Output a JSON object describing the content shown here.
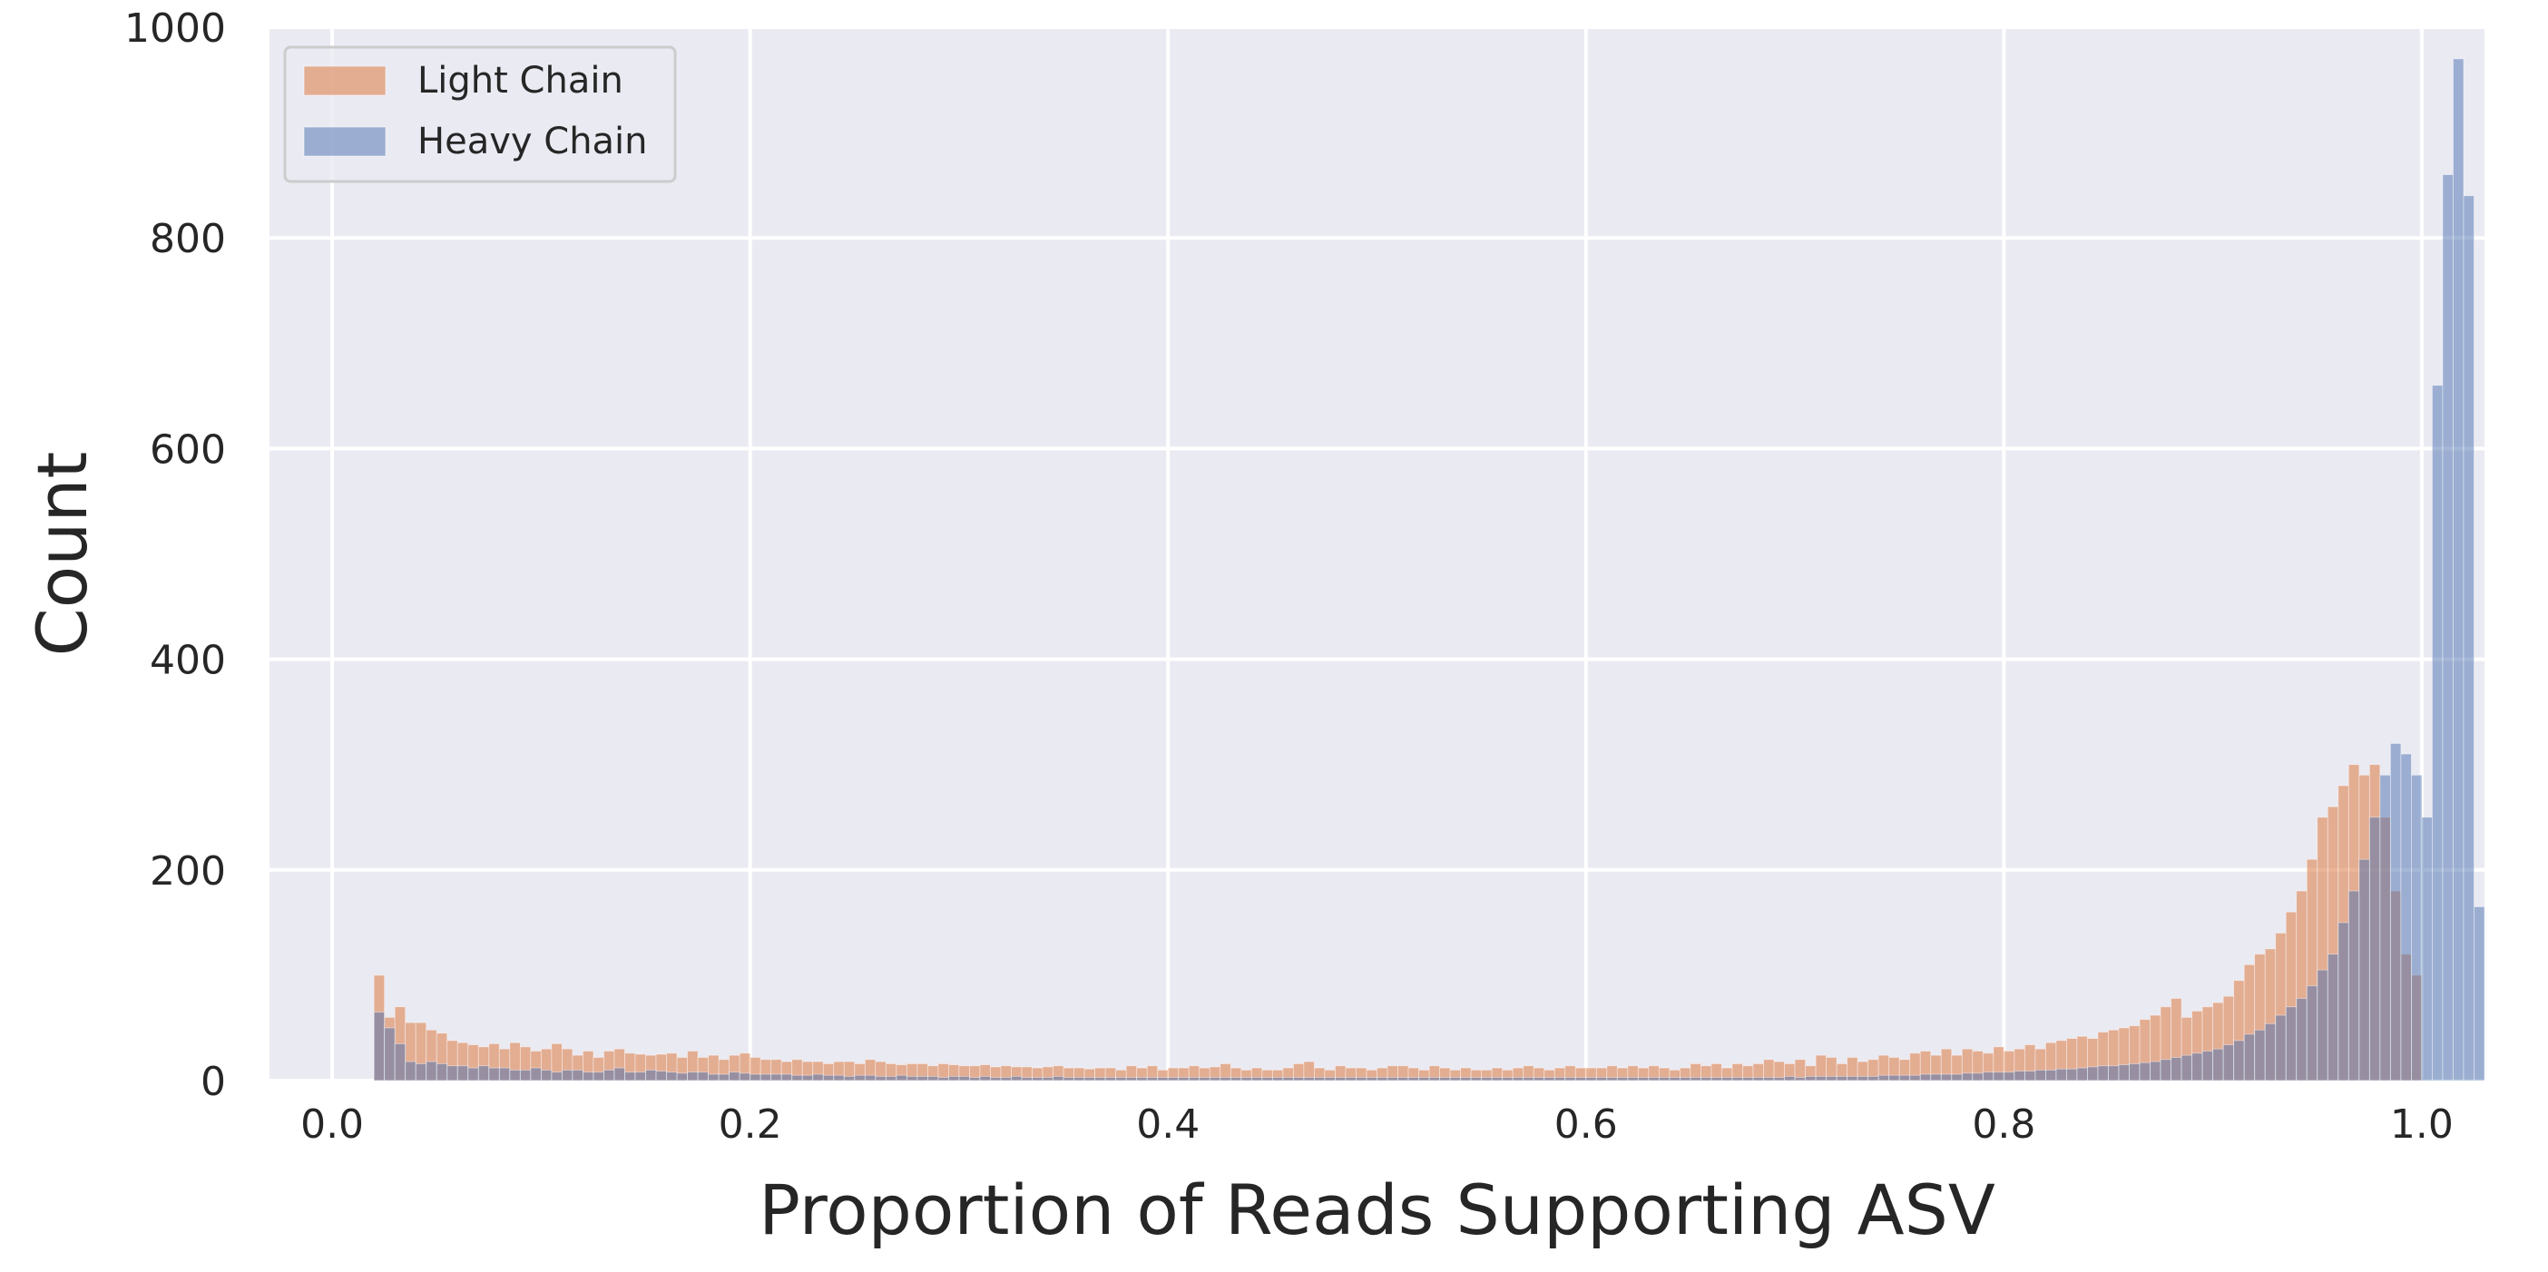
{
  "chart_data": {
    "type": "histogram",
    "title": "",
    "xlabel": "Proportion of Reads Supporting ASV",
    "ylabel": "Count",
    "xlim": [
      -0.03,
      1.03
    ],
    "ylim": [
      0,
      1000
    ],
    "xticks": [
      0.0,
      0.2,
      0.4,
      0.6,
      0.8,
      1.0
    ],
    "xtick_labels": [
      "0.0",
      "0.2",
      "0.4",
      "0.6",
      "0.8",
      "1.0"
    ],
    "yticks": [
      0,
      200,
      400,
      600,
      800,
      1000
    ],
    "ytick_labels": [
      "0",
      "200",
      "400",
      "600",
      "800",
      "1000"
    ],
    "grid": true,
    "legend_position": "top-left",
    "bins": {
      "start": 0.02,
      "end": 1.0,
      "count": 196
    },
    "series": [
      {
        "name": "Light Chain",
        "color": "#dd8452",
        "values": [
          100,
          60,
          70,
          55,
          55,
          48,
          45,
          38,
          36,
          34,
          32,
          35,
          30,
          36,
          32,
          28,
          30,
          35,
          30,
          24,
          28,
          22,
          28,
          30,
          26,
          25,
          24,
          25,
          26,
          22,
          28,
          22,
          24,
          20,
          24,
          26,
          22,
          20,
          20,
          18,
          20,
          18,
          18,
          16,
          18,
          18,
          16,
          20,
          18,
          16,
          15,
          16,
          16,
          14,
          16,
          15,
          14,
          14,
          15,
          13,
          14,
          13,
          13,
          12,
          13,
          14,
          12,
          12,
          11,
          12,
          12,
          10,
          14,
          12,
          14,
          10,
          12,
          12,
          14,
          12,
          13,
          16,
          12,
          10,
          12,
          10,
          10,
          12,
          16,
          18,
          12,
          10,
          14,
          12,
          12,
          10,
          12,
          14,
          14,
          12,
          10,
          14,
          12,
          10,
          12,
          10,
          10,
          12,
          10,
          12,
          14,
          12,
          10,
          12,
          14,
          12,
          12,
          12,
          14,
          12,
          14,
          12,
          14,
          12,
          10,
          12,
          16,
          14,
          16,
          12,
          16,
          14,
          16,
          20,
          18,
          16,
          20,
          14,
          24,
          22,
          16,
          22,
          18,
          20,
          24,
          22,
          20,
          26,
          28,
          24,
          30,
          24,
          30,
          28,
          26,
          32,
          28,
          30,
          34,
          30,
          36,
          38,
          40,
          42,
          40,
          46,
          48,
          50,
          52,
          58,
          62,
          70,
          78,
          60,
          66,
          70,
          74,
          80,
          95,
          110,
          120,
          125,
          140,
          160,
          180,
          210,
          250,
          260,
          280,
          300,
          290,
          300,
          250,
          180,
          120,
          100
        ],
        "opacity": 0.6
      },
      {
        "name": "Heavy Chain",
        "color": "#4c72b0",
        "values": [
          65,
          50,
          35,
          18,
          16,
          18,
          16,
          14,
          14,
          12,
          14,
          12,
          12,
          10,
          10,
          12,
          10,
          8,
          10,
          10,
          8,
          8,
          10,
          12,
          8,
          8,
          10,
          9,
          8,
          7,
          8,
          8,
          6,
          6,
          8,
          7,
          6,
          6,
          6,
          6,
          5,
          5,
          6,
          5,
          5,
          4,
          5,
          5,
          4,
          4,
          5,
          4,
          4,
          4,
          3,
          4,
          4,
          3,
          4,
          3,
          3,
          4,
          3,
          3,
          3,
          4,
          3,
          3,
          3,
          3,
          3,
          3,
          3,
          3,
          3,
          3,
          3,
          3,
          3,
          3,
          3,
          3,
          3,
          3,
          3,
          3,
          3,
          3,
          3,
          3,
          3,
          3,
          3,
          3,
          3,
          3,
          3,
          3,
          3,
          3,
          3,
          3,
          3,
          3,
          3,
          3,
          3,
          3,
          3,
          3,
          3,
          3,
          3,
          3,
          3,
          3,
          3,
          3,
          3,
          3,
          3,
          3,
          3,
          3,
          3,
          3,
          3,
          3,
          3,
          3,
          3,
          3,
          3,
          3,
          3,
          4,
          3,
          4,
          4,
          4,
          4,
          4,
          4,
          4,
          5,
          5,
          5,
          5,
          6,
          6,
          6,
          6,
          7,
          7,
          8,
          8,
          8,
          9,
          9,
          10,
          10,
          11,
          11,
          12,
          13,
          14,
          14,
          15,
          16,
          17,
          18,
          20,
          22,
          24,
          26,
          28,
          30,
          34,
          38,
          44,
          48,
          54,
          62,
          70,
          78,
          90,
          105,
          120,
          150,
          180,
          210,
          250,
          290,
          320,
          310,
          290,
          250,
          660,
          860,
          970,
          840,
          165
        ],
        "opacity": 0.5
      }
    ]
  }
}
